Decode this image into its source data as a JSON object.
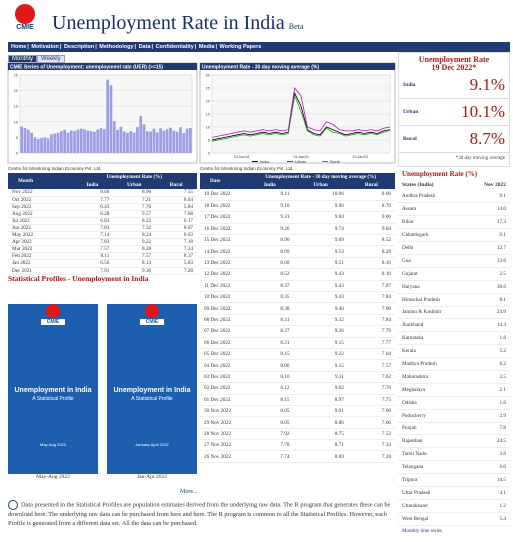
{
  "header": {
    "logo": "CMIE",
    "title": "Unemployment Rate in India",
    "beta": "Beta"
  },
  "nav": [
    "Home",
    "Motivation",
    "Description",
    "Methodology",
    "Data",
    "Confidentiality",
    "Media",
    "Working Papers"
  ],
  "tabs": [
    "Monthly",
    "Weekly"
  ],
  "charts": [
    {
      "type": "bar",
      "title": "CMIE Series of Unemployment: unemployment rate (UER) (>=15)",
      "color": "#9c9ce8",
      "ylim": [
        0,
        25
      ],
      "yticks": [
        0,
        5,
        10,
        15,
        20,
        25
      ],
      "values": [
        8.5,
        8,
        7.5,
        6.5,
        5,
        4.5,
        4.8,
        5,
        4.7,
        6,
        6.2,
        6.5,
        7,
        7.5,
        6.5,
        7.2,
        7,
        7.5,
        7.8,
        7.6,
        7.2,
        7,
        6.8,
        7.5,
        8,
        7.6,
        23.5,
        21.7,
        10.2,
        7.4,
        8.4,
        6.9,
        6.5,
        7,
        6.5,
        8.3,
        11.9,
        9.2,
        7,
        6.9,
        7.8,
        6.6,
        7.9,
        7.1,
        7.6,
        8.1,
        7.2,
        6.8,
        8.3,
        6.4,
        7.8,
        8
      ]
    },
    {
      "type": "line",
      "title": "Unemployment Rate - 30 day moving average (%)",
      "ylim": [
        0,
        30
      ],
      "yticks": [
        0,
        5,
        10,
        15,
        20,
        25,
        30
      ],
      "xticks": [
        "01Jan18",
        "01Jan20",
        "01Jan22"
      ],
      "series": [
        {
          "name": "India",
          "color": "#000000",
          "values": [
            5,
            5.5,
            6,
            6.5,
            7,
            7.5,
            7,
            7.5,
            8,
            7.5,
            8,
            7.5,
            8,
            23,
            18,
            9,
            7.5,
            7,
            10,
            9,
            8,
            7,
            7.5,
            8,
            7.5,
            8,
            7.5,
            8.5,
            9
          ]
        },
        {
          "name": "Urban",
          "color": "#c010c0",
          "values": [
            6,
            6.5,
            7,
            7.5,
            8,
            8.5,
            8,
            8.5,
            9,
            8.5,
            9,
            8.5,
            9,
            25,
            22,
            10,
            9,
            8.5,
            12,
            11,
            9,
            8.5,
            8.5,
            9,
            8.5,
            9,
            8.5,
            9.5,
            10
          ]
        },
        {
          "name": "Rural",
          "color": "#2ca02c",
          "values": [
            4.5,
            5,
            5.5,
            6,
            6.5,
            7,
            6.5,
            7,
            7.5,
            7,
            7.5,
            7,
            7.5,
            22,
            16,
            8.5,
            7,
            6.5,
            9.5,
            8,
            7.5,
            6.5,
            7,
            7.5,
            7,
            7.5,
            7,
            8,
            8.7
          ]
        }
      ]
    }
  ],
  "source": "Centre for Monitoring Indian Economy Pvt. Ltd.",
  "current": {
    "title": "Unemployment Rate",
    "date": "19 Dec 2022*",
    "rows": [
      [
        "India",
        "9.1%"
      ],
      [
        "Urban",
        "10.1%"
      ],
      [
        "Rural",
        "8.7%"
      ]
    ],
    "note": "*30 day moving average"
  },
  "monthly": {
    "head": [
      "Month",
      "Unemployment Rate (%)"
    ],
    "sub": [
      "India",
      "Urban",
      "Rural"
    ],
    "rows": [
      [
        "Nov 2022",
        "8.00",
        "8.96",
        "7.55"
      ],
      [
        "Oct 2022",
        "7.77",
        "7.21",
        "8.04"
      ],
      [
        "Sep 2022",
        "6.43",
        "7.70",
        "5.84"
      ],
      [
        "Aug 2022",
        "8.28",
        "9.57",
        "7.68"
      ],
      [
        "Jul 2022",
        "6.83",
        "8.22",
        "6.17"
      ],
      [
        "Jun 2022",
        "7.83",
        "7.32",
        "8.07"
      ],
      [
        "May 2022",
        "7.14",
        "8.24",
        "6.63"
      ],
      [
        "Apr 2022",
        "7.83",
        "9.22",
        "7.18"
      ],
      [
        "Mar 2022",
        "7.57",
        "8.28",
        "7.24"
      ],
      [
        "Feb 2022",
        "8.11",
        "7.57",
        "8.37"
      ],
      [
        "Jan 2022",
        "6.56",
        "8.14",
        "5.83"
      ],
      [
        "Dec 2021",
        "7.91",
        "9.30",
        "7.28"
      ]
    ]
  },
  "daily": {
    "head": [
      "Date",
      "Unemployment Rate - 30 day moving average (%)"
    ],
    "sub": [
      "India",
      "Urban",
      "Rural"
    ],
    "rows": [
      [
        "19 Dec 2022",
        "9.11",
        "10.06",
        "8.66"
      ],
      [
        "18 Dec 2022",
        "9.10",
        "9.96",
        "8.70"
      ],
      [
        "17 Dec 2022",
        "9.31",
        "9.84",
        "9.06"
      ],
      [
        "16 Dec 2022",
        "9.26",
        "9.74",
        "9.04"
      ],
      [
        "15 Dec 2022",
        "8.90",
        "9.69",
        "8.52"
      ],
      [
        "14 Dec 2022",
        "8.69",
        "9.53",
        "8.29"
      ],
      [
        "13 Dec 2022",
        "8.60",
        "9.51",
        "8.16"
      ],
      [
        "12 Dec 2022",
        "8.52",
        "9.43",
        "8.10"
      ],
      [
        "11 Dec 2022",
        "8.37",
        "9.43",
        "7.87"
      ],
      [
        "10 Dec 2022",
        "8.35",
        "9.43",
        "7.84"
      ],
      [
        "09 Dec 2022",
        "8.38",
        "9.40",
        "7.90"
      ],
      [
        "08 Dec 2022",
        "8.31",
        "9.32",
        "7.84"
      ],
      [
        "07 Dec 2022",
        "8.27",
        "9.26",
        "7.79"
      ],
      [
        "06 Dec 2022",
        "8.21",
        "9.15",
        "7.77"
      ],
      [
        "05 Dec 2022",
        "8.15",
        "9.22",
        "7.64"
      ],
      [
        "04 Dec 2022",
        "8.06",
        "9.15",
        "7.57"
      ],
      [
        "03 Dec 2022",
        "8.10",
        "9.11",
        "7.62"
      ],
      [
        "02 Dec 2022",
        "8.12",
        "9.02",
        "7.70"
      ],
      [
        "01 Dec 2022",
        "8.15",
        "8.97",
        "7.75"
      ],
      [
        "30 Nov 2022",
        "8.05",
        "9.01",
        "7.66"
      ],
      [
        "29 Nov 2022",
        "8.05",
        "8.86",
        "7.66"
      ],
      [
        "28 Nov 2022",
        "7.92",
        "8.75",
        "7.53"
      ],
      [
        "27 Nov 2022",
        "7.78",
        "8.71",
        "7.34"
      ],
      [
        "26 Nov 2022",
        "7.74",
        "8.69",
        "7.28"
      ]
    ]
  },
  "states": {
    "title": "Unemployment Rate (%)",
    "head": [
      "States (India)",
      "Nov 2022"
    ],
    "rows": [
      [
        "Andhra Pradesh",
        "9.1"
      ],
      [
        "Assam",
        "14.0"
      ],
      [
        "Bihar",
        "17.3"
      ],
      [
        "Chhattisgarh",
        "0.1"
      ],
      [
        "Delhi",
        "12.7"
      ],
      [
        "Goa",
        "13.6"
      ],
      [
        "Gujarat",
        "2.5"
      ],
      [
        "Haryana",
        "30.6"
      ],
      [
        "Himachal Pradesh",
        "8.1"
      ],
      [
        "Jammu & Kashmir",
        "23.9"
      ],
      [
        "Jharkhand",
        "14.3"
      ],
      [
        "Karnataka",
        "1.8"
      ],
      [
        "Kerala",
        "5.2"
      ],
      [
        "Madhya Pradesh",
        "6.2"
      ],
      [
        "Maharashtra",
        "3.5"
      ],
      [
        "Meghalaya",
        "2.1"
      ],
      [
        "Odisha",
        "1.6"
      ],
      [
        "Puducherry",
        "2.9"
      ],
      [
        "Punjab",
        "7.8"
      ],
      [
        "Rajasthan",
        "24.5"
      ],
      [
        "Tamil Nadu",
        "3.8"
      ],
      [
        "Telangana",
        "6.0"
      ],
      [
        "Tripura",
        "14.5"
      ],
      [
        "Uttar Pradesh",
        "4.1"
      ],
      [
        "Uttarakhand",
        "1.2"
      ],
      [
        "West Bengal",
        "5.4"
      ]
    ],
    "link": "Monthly time series"
  },
  "profiles": {
    "title": "Statistical Profiles - Unemployment in India",
    "items": [
      {
        "logo": "CMIE",
        "name": "Unemployment in India",
        "sub": "A Statistical Profile",
        "period": "May-Aug 2022",
        "caption": "May-Aug 2022"
      },
      {
        "logo": "CMIE",
        "name": "Unemployment in India",
        "sub": "A Statistical Profile",
        "period": "January-April 2022",
        "caption": "Jan-Apr 2022"
      }
    ],
    "more": "More..."
  },
  "footer": "Data presented in the Statistical Profiles are population estimates derived from the underlying raw data. The R program that generates these can be download here. The underlying raw data can be purchased from here and here. The R program is common to all the Statistical Profiles. However, each Profile is generated from a different data set. All the data can be purchased."
}
